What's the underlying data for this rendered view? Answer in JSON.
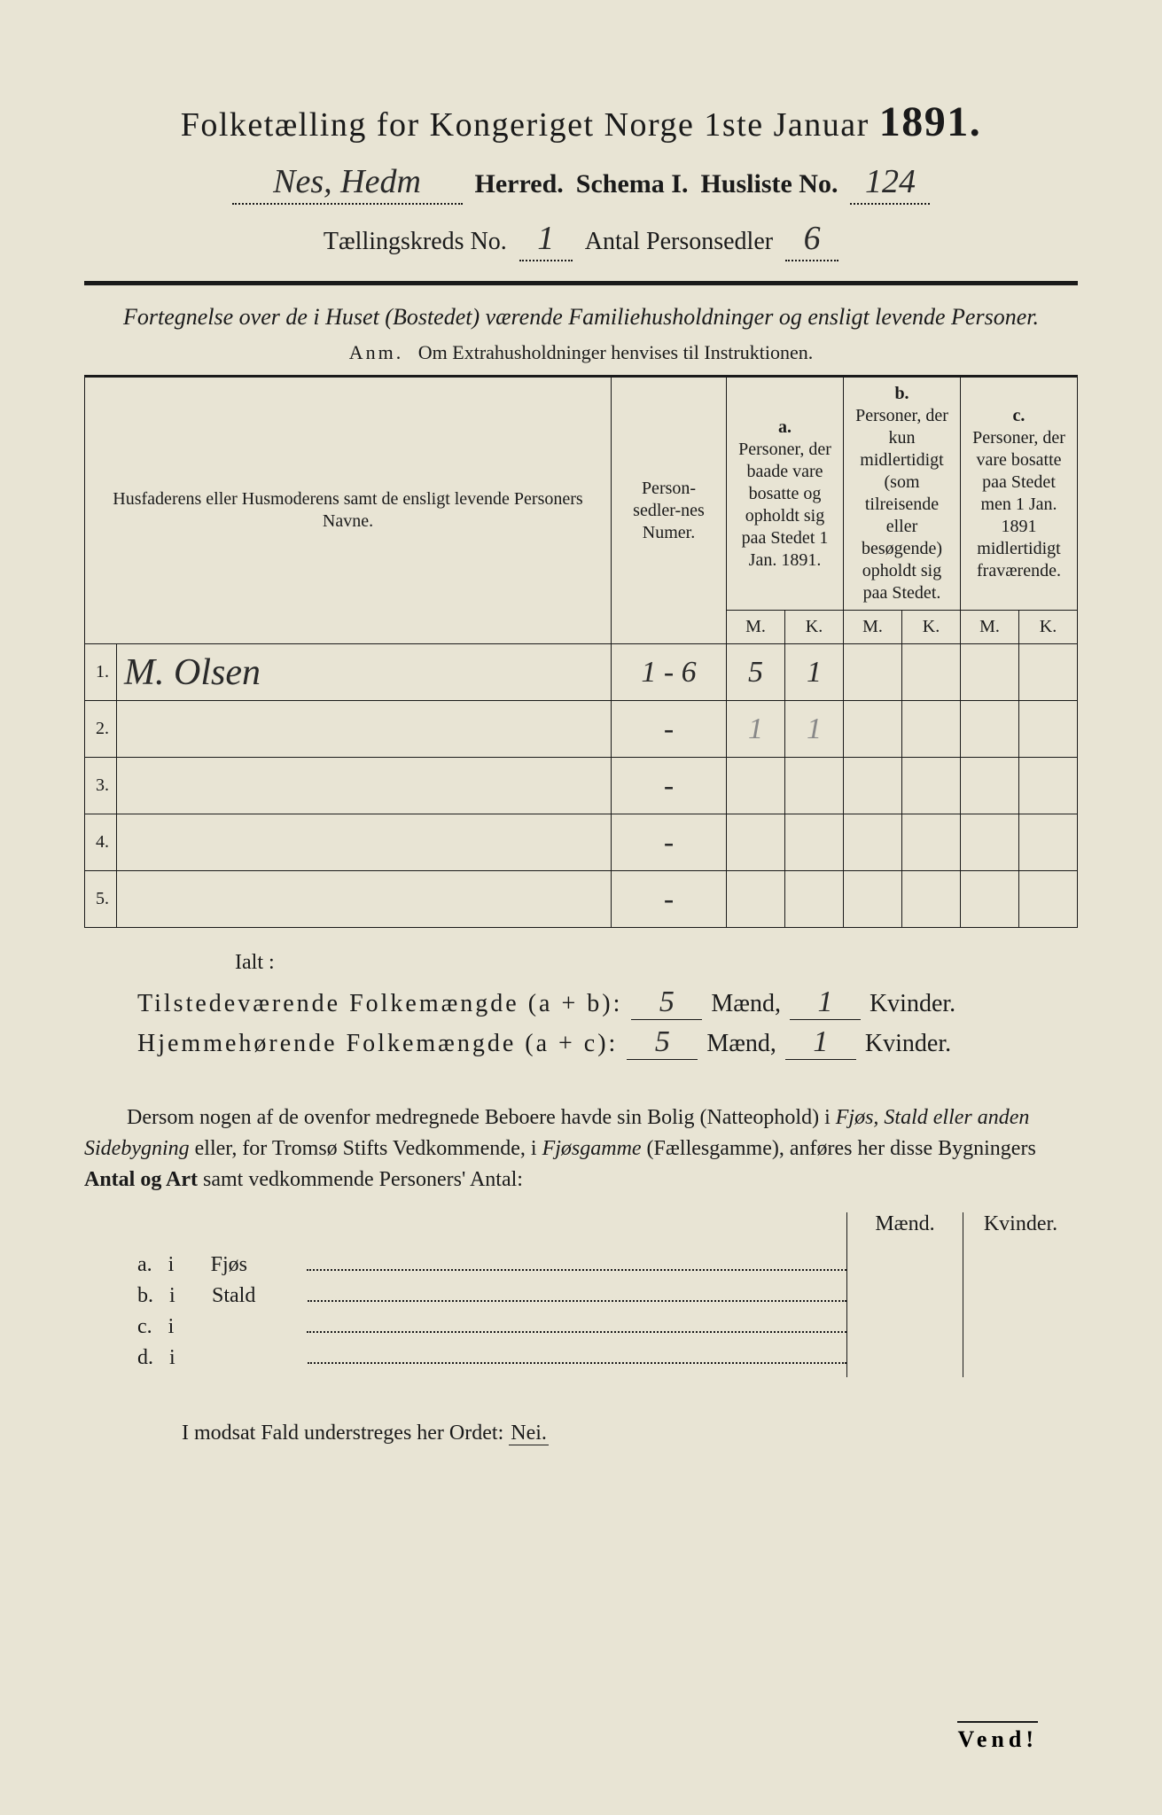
{
  "colors": {
    "page_bg": "#e8e4d4",
    "ink": "#1a1a1a",
    "handwriting": "#2a2a2a",
    "light_handwriting": "#888888",
    "outer_bg": "#3a3a3a"
  },
  "header": {
    "title_prefix": "Folketælling for Kongeriget Norge 1ste Januar",
    "year": "1891.",
    "herred_value": "Nes, Hedm",
    "herred_label": "Herred.",
    "schema_label": "Schema I.",
    "husliste_label": "Husliste No.",
    "husliste_value": "124",
    "kreds_label": "Tællingskreds No.",
    "kreds_value": "1",
    "antal_label": "Antal Personsedler",
    "antal_value": "6"
  },
  "subtitle": {
    "line": "Fortegnelse over de i Huset (Bostedet) værende Familiehusholdninger og ensligt levende Personer.",
    "anm_label": "Anm.",
    "anm_text": "Om Extrahusholdninger henvises til Instruktionen."
  },
  "table": {
    "col_name": "Husfaderens eller Husmoderens samt de ensligt levende Personers Navne.",
    "col_person": "Person-sedler-nes Numer.",
    "col_a_label": "a.",
    "col_a": "Personer, der baade vare bosatte og opholdt sig paa Stedet 1 Jan. 1891.",
    "col_b_label": "b.",
    "col_b": "Personer, der kun midlertidigt (som tilreisende eller besøgende) opholdt sig paa Stedet.",
    "col_c_label": "c.",
    "col_c": "Personer, der vare bosatte paa Stedet men 1 Jan. 1891 midlertidigt fraværende.",
    "mk_m": "M.",
    "mk_k": "K.",
    "rows": [
      {
        "n": "1.",
        "name": "M. Olsen",
        "pers": "1 - 6",
        "a_m": "5",
        "a_k": "1",
        "b_m": "",
        "b_k": "",
        "c_m": "",
        "c_k": ""
      },
      {
        "n": "2.",
        "name": "",
        "pers": "-",
        "a_m": "1",
        "a_k": "1",
        "a_light": true,
        "b_m": "",
        "b_k": "",
        "c_m": "",
        "c_k": ""
      },
      {
        "n": "3.",
        "name": "",
        "pers": "-",
        "a_m": "",
        "a_k": "",
        "b_m": "",
        "b_k": "",
        "c_m": "",
        "c_k": ""
      },
      {
        "n": "4.",
        "name": "",
        "pers": "-",
        "a_m": "",
        "a_k": "",
        "b_m": "",
        "b_k": "",
        "c_m": "",
        "c_k": ""
      },
      {
        "n": "5.",
        "name": "",
        "pers": "-",
        "a_m": "",
        "a_k": "",
        "b_m": "",
        "b_k": "",
        "c_m": "",
        "c_k": ""
      }
    ]
  },
  "totals": {
    "ialt": "Ialt :",
    "line1_label": "Tilstedeværende Folkemængde (a + b):",
    "line1_m": "5",
    "line1_k": "1",
    "line2_label": "Hjemmehørende Folkemængde (a + c):",
    "line2_m": "5",
    "line2_k": "1",
    "maend": "Mænd,",
    "kvinder": "Kvinder."
  },
  "paragraph": {
    "text_1": "Dersom nogen af de ovenfor medregnede Beboere havde sin Bolig (Natteophold) i ",
    "it_1": "Fjøs, Stald eller anden Sidebygning",
    "text_2": " eller, for Tromsø Stifts Vedkommende, i ",
    "it_2": "Fjøsgamme",
    "text_3": " (Fællesgamme), anføres her disse Bygningers ",
    "bold_1": "Antal og Art",
    "text_4": " samt vedkommende Personers' Antal:"
  },
  "side": {
    "maend": "Mænd.",
    "kvinder": "Kvinder.",
    "rows": [
      {
        "lbl": "a.",
        "i": "i",
        "name": "Fjøs"
      },
      {
        "lbl": "b.",
        "i": "i",
        "name": "Stald"
      },
      {
        "lbl": "c.",
        "i": "i",
        "name": ""
      },
      {
        "lbl": "d.",
        "i": "i",
        "name": ""
      }
    ]
  },
  "nei": {
    "prefix": "I modsat Fald understreges her Ordet:",
    "word": "Nei."
  },
  "vend": "Vend!"
}
